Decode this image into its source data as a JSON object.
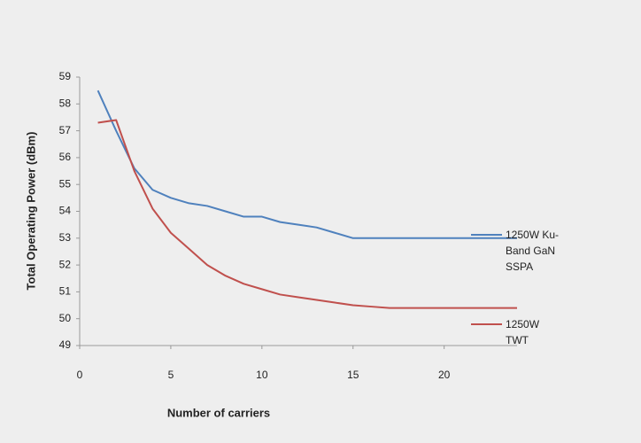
{
  "chart_data": {
    "type": "line",
    "x_label": "Number of carriers",
    "y_label": "Total Operating  Power (dBm)",
    "x": [
      1,
      2,
      3,
      4,
      5,
      6,
      7,
      8,
      9,
      10,
      11,
      12,
      13,
      14,
      15,
      16,
      17,
      18,
      19,
      20,
      21,
      22,
      23,
      24
    ],
    "series": [
      {
        "name": "1250W Ku-Band GaN SSPA",
        "color": "#4f81bd",
        "values": [
          58.5,
          57.0,
          55.6,
          54.8,
          54.5,
          54.3,
          54.2,
          54.0,
          53.8,
          53.8,
          53.6,
          53.5,
          53.4,
          53.2,
          53.0,
          53.0,
          53.0,
          53.0,
          53.0,
          53.0,
          53.0,
          53.0,
          53.0,
          53.0
        ]
      },
      {
        "name": "1250W TWT",
        "color": "#c0504d",
        "values": [
          57.3,
          57.4,
          55.5,
          54.1,
          53.2,
          52.6,
          52.0,
          51.6,
          51.3,
          51.1,
          50.9,
          50.8,
          50.7,
          50.6,
          50.5,
          50.45,
          50.4,
          50.4,
          50.4,
          50.4,
          50.4,
          50.4,
          50.4,
          50.4
        ]
      }
    ],
    "xlim": [
      0,
      24
    ],
    "xticks": [
      0,
      5,
      10,
      15,
      20
    ],
    "ylim": [
      49,
      59
    ],
    "yticks": [
      49,
      50,
      51,
      52,
      53,
      54,
      55,
      56,
      57,
      58,
      59
    ],
    "grid": false,
    "legend": "right"
  }
}
